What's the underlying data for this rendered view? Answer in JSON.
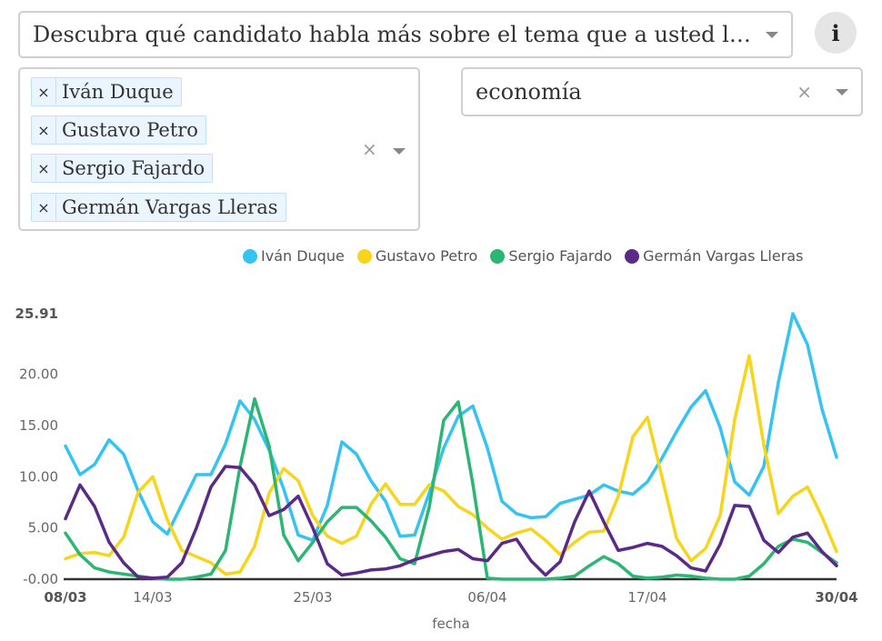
{
  "topic_select": {
    "value": "Descubra qué candidato habla más sobre el tema que a usted le interesa"
  },
  "info_button": {
    "label": "i"
  },
  "candidates_select": {
    "tags": [
      "Iván Duque",
      "Gustavo Petro",
      "Sergio Fajardo",
      "Germán Vargas Lleras"
    ],
    "clear_label": "×",
    "remove_label": "×"
  },
  "theme_select": {
    "value": "economía",
    "clear_label": "×"
  },
  "chart_data": {
    "type": "line",
    "xlabel": "fecha",
    "ylabel": "",
    "ylim": [
      0,
      25.91
    ],
    "yticks": [
      "25.91",
      "20.00",
      "15.00",
      "10.00",
      "5.00",
      "-0.00"
    ],
    "xticks": [
      {
        "label": "08/03",
        "index": 0,
        "bold": true
      },
      {
        "label": "14/03",
        "index": 6,
        "bold": false
      },
      {
        "label": "25/03",
        "index": 17,
        "bold": false
      },
      {
        "label": "06/04",
        "index": 29,
        "bold": false
      },
      {
        "label": "17/04",
        "index": 40,
        "bold": false
      },
      {
        "label": "30/04",
        "index": 53,
        "bold": true
      }
    ],
    "x": [
      "08/03",
      "09/03",
      "10/03",
      "11/03",
      "12/03",
      "13/03",
      "14/03",
      "15/03",
      "16/03",
      "17/03",
      "18/03",
      "19/03",
      "20/03",
      "21/03",
      "22/03",
      "23/03",
      "24/03",
      "25/03",
      "26/03",
      "27/03",
      "28/03",
      "29/03",
      "30/03",
      "31/03",
      "01/04",
      "02/04",
      "03/04",
      "04/04",
      "05/04",
      "06/04",
      "07/04",
      "08/04",
      "09/04",
      "10/04",
      "11/04",
      "12/04",
      "13/04",
      "14/04",
      "15/04",
      "16/04",
      "17/04",
      "18/04",
      "19/04",
      "20/04",
      "21/04",
      "22/04",
      "23/04",
      "24/04",
      "25/04",
      "26/04",
      "27/04",
      "28/04",
      "29/04",
      "30/04"
    ],
    "series": [
      {
        "name": "Iván Duque",
        "color": "#34c3f3",
        "values": [
          13.0,
          10.2,
          11.2,
          13.6,
          12.2,
          8.6,
          5.6,
          4.4,
          7.3,
          10.2,
          10.2,
          13.2,
          17.4,
          15.6,
          12.6,
          8.8,
          4.3,
          3.8,
          7.2,
          13.4,
          12.2,
          9.6,
          7.6,
          4.2,
          4.3,
          8.4,
          12.8,
          15.9,
          16.9,
          12.8,
          7.6,
          6.4,
          6.0,
          6.1,
          7.4,
          7.8,
          8.2,
          9.2,
          8.6,
          8.3,
          9.5,
          11.8,
          14.4,
          16.8,
          18.4,
          14.8,
          9.5,
          8.2,
          11.0,
          19.2,
          25.91,
          22.9,
          16.6,
          11.9
        ]
      },
      {
        "name": "Gustavo Petro",
        "color": "#f7d51d",
        "values": [
          2.0,
          2.5,
          2.6,
          2.3,
          4.1,
          8.5,
          10.0,
          5.8,
          2.8,
          2.2,
          1.6,
          0.5,
          0.7,
          3.2,
          8.4,
          10.8,
          9.6,
          6.2,
          4.2,
          3.5,
          4.2,
          7.3,
          9.3,
          7.3,
          7.3,
          9.2,
          8.6,
          7.1,
          6.3,
          5.0,
          3.9,
          4.5,
          4.9,
          3.8,
          2.4,
          3.6,
          4.6,
          4.7,
          8.1,
          13.9,
          15.8,
          10.0,
          4.0,
          1.8,
          3.0,
          6.2,
          15.6,
          21.8,
          13.1,
          6.4,
          8.1,
          9.0,
          6.1,
          2.7
        ]
      },
      {
        "name": "Sergio Fajardo",
        "color": "#2cb674",
        "values": [
          4.5,
          2.4,
          1.1,
          0.7,
          0.5,
          0.3,
          0.1,
          0.0,
          0.0,
          0.2,
          0.5,
          2.8,
          11.0,
          17.6,
          13.0,
          4.3,
          1.8,
          3.6,
          5.6,
          7.0,
          7.0,
          5.7,
          4.1,
          2.0,
          1.5,
          7.0,
          15.5,
          17.3,
          9.3,
          0.1,
          0.0,
          0.0,
          0.0,
          0.0,
          0.1,
          0.3,
          1.3,
          2.2,
          1.5,
          0.3,
          0.1,
          0.2,
          0.4,
          0.3,
          0.1,
          0.0,
          0.0,
          0.3,
          1.5,
          3.2,
          3.9,
          3.6,
          2.6,
          1.6
        ]
      },
      {
        "name": "Germán Vargas Lleras",
        "color": "#5b2a86",
        "values": [
          5.9,
          9.2,
          7.1,
          3.6,
          1.6,
          0.2,
          0.1,
          0.2,
          1.6,
          5.0,
          9.0,
          11.0,
          10.9,
          9.2,
          6.2,
          6.8,
          8.1,
          5.0,
          1.5,
          0.4,
          0.6,
          0.9,
          1.0,
          1.3,
          1.9,
          2.3,
          2.7,
          2.9,
          2.0,
          1.8,
          3.5,
          3.9,
          1.8,
          0.4,
          1.7,
          5.6,
          8.6,
          5.6,
          2.8,
          3.1,
          3.5,
          3.2,
          2.3,
          1.1,
          0.8,
          3.4,
          7.2,
          7.1,
          3.8,
          2.6,
          4.1,
          4.5,
          2.7,
          1.3
        ]
      }
    ]
  }
}
